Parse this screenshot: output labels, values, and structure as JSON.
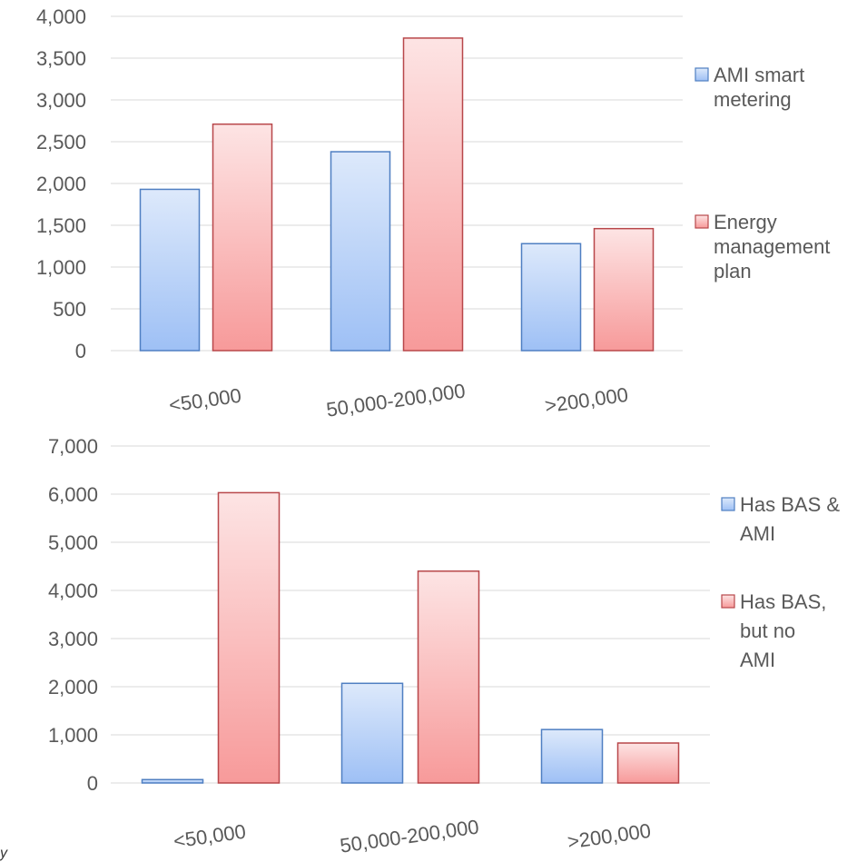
{
  "colors": {
    "blue_top": "#dde9fb",
    "blue_bottom": "#9ec0f5",
    "blue_border": "#4f7fc2",
    "red_top": "#fde4e4",
    "red_bottom": "#f79a9a",
    "red_border": "#b8474a",
    "grid": "#d9d9d9",
    "text": "#595959"
  },
  "stray_text": "y",
  "chart_data": [
    {
      "type": "bar",
      "title": "",
      "xlabel": "",
      "ylabel": "",
      "categories": [
        "<50,000",
        "50,000-200,000",
        ">200,000"
      ],
      "ylim": [
        0,
        4000
      ],
      "yticks": [
        0,
        500,
        1000,
        1500,
        2000,
        2500,
        3000,
        3500,
        4000
      ],
      "ytick_labels": [
        "0",
        "500",
        "1,000",
        "1,500",
        "2,000",
        "2,500",
        "3,000",
        "3,500",
        "4,000"
      ],
      "grid": true,
      "legend_position": "right",
      "series": [
        {
          "name": "AMI smart metering",
          "name_lines": [
            "AMI smart",
            "metering"
          ],
          "color": "blue",
          "values": [
            1930,
            2380,
            1280
          ]
        },
        {
          "name": "Energy management plan",
          "name_lines": [
            "Energy",
            "management",
            "plan"
          ],
          "color": "red",
          "values": [
            2710,
            3740,
            1460
          ]
        }
      ]
    },
    {
      "type": "bar",
      "title": "",
      "xlabel": "",
      "ylabel": "",
      "categories": [
        "<50,000",
        "50,000-200,000",
        ">200,000"
      ],
      "ylim": [
        0,
        7000
      ],
      "yticks": [
        0,
        1000,
        2000,
        3000,
        4000,
        5000,
        6000,
        7000
      ],
      "ytick_labels": [
        "0",
        "1,000",
        "2,000",
        "3,000",
        "4,000",
        "5,000",
        "6,000",
        "7,000"
      ],
      "grid": true,
      "legend_position": "right",
      "series": [
        {
          "name": "Has BAS & AMI",
          "name_lines": [
            "Has BAS &",
            "AMI"
          ],
          "color": "blue",
          "values": [
            70,
            2070,
            1110
          ]
        },
        {
          "name": "Has BAS, but no AMI",
          "name_lines": [
            "Has BAS,",
            "but no",
            "AMI"
          ],
          "color": "red",
          "values": [
            6030,
            4400,
            830
          ]
        }
      ]
    }
  ]
}
